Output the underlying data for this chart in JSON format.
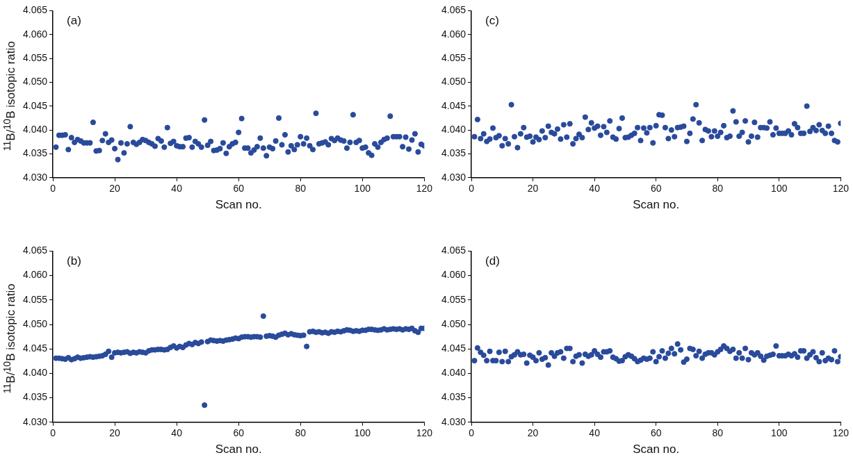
{
  "chart_data": [
    {
      "type": "scatter",
      "title": "(a)",
      "xlabel": "Scan no.",
      "ylabel": "$^{11}$B/$^{10}$B isotopic ratio",
      "marker": "circle",
      "grid": false,
      "legend": false,
      "xlim": [
        0,
        120
      ],
      "xticks": [
        0,
        20,
        40,
        60,
        80,
        100,
        120
      ],
      "ylim": [
        4.03,
        4.065
      ],
      "yticks": [
        {
          "value": 4.03,
          "label": "4.030"
        },
        {
          "value": 4.035,
          "label": "4.035"
        },
        {
          "value": 4.04,
          "label": "4.040"
        },
        {
          "value": 4.045,
          "label": "4.045"
        },
        {
          "value": 4.05,
          "label": "4.050"
        },
        {
          "value": 4.055,
          "label": "4.055"
        },
        {
          "value": 4.06,
          "label": "4.060"
        },
        {
          "value": 4.065,
          "label": "4.065"
        }
      ],
      "series": [
        {
          "color": "#2a4b9b",
          "x": [
            1,
            2,
            3,
            4,
            5,
            6,
            7,
            8,
            9,
            10,
            11,
            12,
            13,
            14,
            15,
            16,
            17,
            18,
            19,
            20,
            21,
            22,
            23,
            24,
            25,
            26,
            27,
            28,
            29,
            30,
            31,
            32,
            33,
            34,
            35,
            36,
            37,
            38,
            39,
            40,
            41,
            42,
            43,
            44,
            45,
            46,
            47,
            48,
            49,
            50,
            51,
            52,
            53,
            54,
            55,
            56,
            57,
            58,
            59,
            60,
            61,
            62,
            63,
            64,
            65,
            66,
            67,
            68,
            69,
            70,
            71,
            72,
            73,
            74,
            75,
            76,
            77,
            78,
            79,
            80,
            81,
            82,
            83,
            84,
            85,
            86,
            87,
            88,
            89,
            90,
            91,
            92,
            93,
            94,
            95,
            96,
            97,
            98,
            99,
            100,
            101,
            102,
            103,
            104,
            105,
            106,
            107,
            108,
            109,
            110,
            111,
            112,
            113,
            114,
            115,
            116,
            117,
            118,
            119,
            120
          ],
          "values": [
            4.0364,
            4.0389,
            4.0389,
            4.039,
            4.0359,
            4.0384,
            4.0374,
            4.038,
            4.0377,
            4.0373,
            4.0373,
            4.0373,
            4.0416,
            4.0356,
            4.0357,
            4.0378,
            4.0392,
            4.0374,
            4.0379,
            4.0361,
            4.0338,
            4.0373,
            4.0352,
            4.0371,
            4.0407,
            4.0374,
            4.037,
            4.0374,
            4.038,
            4.0378,
            4.0374,
            4.0371,
            4.0366,
            4.0382,
            4.0377,
            4.0364,
            4.0405,
            4.0372,
            4.0376,
            4.0367,
            4.0365,
            4.0365,
            4.0383,
            4.0384,
            4.0364,
            4.0376,
            4.0371,
            4.0364,
            4.0421,
            4.0368,
            4.0376,
            4.0357,
            4.0358,
            4.0361,
            4.0373,
            4.0351,
            4.0365,
            4.0371,
            4.0374,
            4.0395,
            4.0424,
            4.0362,
            4.0362,
            4.0352,
            4.0358,
            4.0365,
            4.0383,
            4.0362,
            4.0346,
            4.0364,
            4.0361,
            4.0377,
            4.0425,
            4.0369,
            4.039,
            4.0354,
            4.0367,
            4.0359,
            4.0369,
            4.0386,
            4.0371,
            4.0383,
            4.0367,
            4.0359,
            4.0435,
            4.0371,
            4.0373,
            4.0375,
            4.0369,
            4.0382,
            4.0378,
            4.0383,
            4.0379,
            4.0377,
            4.0362,
            4.0374,
            4.0432,
            4.0374,
            4.0378,
            4.0362,
            4.0364,
            4.0352,
            4.0347,
            4.0371,
            4.0364,
            4.0374,
            4.038,
            4.0383,
            4.0429,
            4.0386,
            4.0386,
            4.0386,
            4.0365,
            4.0385,
            4.036,
            4.0379,
            4.0392,
            4.0354,
            4.037,
            4.0367
          ]
        }
      ]
    },
    {
      "type": "scatter",
      "title": "(c)",
      "xlabel": "Scan no.",
      "marker": "circle",
      "grid": false,
      "legend": false,
      "xlim": [
        0,
        120
      ],
      "xticks": [
        0,
        20,
        40,
        60,
        80,
        100,
        120
      ],
      "ylim": [
        4.03,
        4.065
      ],
      "yticks": [
        {
          "value": 4.03,
          "label": "4.030"
        },
        {
          "value": 4.035,
          "label": "4.035"
        },
        {
          "value": 4.04,
          "label": "4.040"
        },
        {
          "value": 4.045,
          "label": "4.045"
        },
        {
          "value": 4.05,
          "label": "4.050"
        },
        {
          "value": 4.055,
          "label": "4.055"
        },
        {
          "value": 4.06,
          "label": "4.060"
        },
        {
          "value": 4.065,
          "label": "4.065"
        }
      ],
      "series": [
        {
          "color": "#2a4b9b",
          "x": [
            1,
            2,
            3,
            4,
            5,
            6,
            7,
            8,
            9,
            10,
            11,
            12,
            13,
            14,
            15,
            16,
            17,
            18,
            19,
            20,
            21,
            22,
            23,
            24,
            25,
            26,
            27,
            28,
            29,
            30,
            31,
            32,
            33,
            34,
            35,
            36,
            37,
            38,
            39,
            40,
            41,
            42,
            43,
            44,
            45,
            46,
            47,
            48,
            49,
            50,
            51,
            52,
            53,
            54,
            55,
            56,
            57,
            58,
            59,
            60,
            61,
            62,
            63,
            64,
            65,
            66,
            67,
            68,
            69,
            70,
            71,
            72,
            73,
            74,
            75,
            76,
            77,
            78,
            79,
            80,
            81,
            82,
            83,
            84,
            85,
            86,
            87,
            88,
            89,
            90,
            91,
            92,
            93,
            94,
            95,
            96,
            97,
            98,
            99,
            100,
            101,
            102,
            103,
            104,
            105,
            106,
            107,
            108,
            109,
            110,
            111,
            112,
            113,
            114,
            115,
            116,
            117,
            118,
            119,
            120
          ],
          "values": [
            4.0386,
            4.0422,
            4.0382,
            4.0392,
            4.0376,
            4.0381,
            4.0404,
            4.0384,
            4.0388,
            4.0367,
            4.0382,
            4.0371,
            4.0453,
            4.0386,
            4.0363,
            4.0392,
            4.0405,
            4.0385,
            4.0387,
            4.0375,
            4.0385,
            4.038,
            4.0398,
            4.0384,
            4.0408,
            4.0395,
            4.0392,
            4.0402,
            4.0381,
            4.0411,
            4.0385,
            4.0413,
            4.0371,
            4.0382,
            4.0391,
            4.0384,
            4.0427,
            4.0401,
            4.0415,
            4.0404,
            4.0408,
            4.0389,
            4.0407,
            4.0395,
            4.0419,
            4.0385,
            4.0381,
            4.0403,
            4.0425,
            4.0384,
            4.0385,
            4.0389,
            4.0393,
            4.0405,
            4.0378,
            4.0404,
            4.0394,
            4.0405,
            4.0373,
            4.0409,
            4.0432,
            4.0431,
            4.0405,
            4.0382,
            4.04,
            4.0386,
            4.0405,
            4.0406,
            4.0408,
            4.0376,
            4.0393,
            4.0423,
            4.0453,
            4.0415,
            4.0378,
            4.0401,
            4.0398,
            4.0386,
            4.0398,
            4.0387,
            4.0395,
            4.0409,
            4.0384,
            4.0387,
            4.044,
            4.0417,
            4.0387,
            4.0395,
            4.0419,
            4.0375,
            4.0387,
            4.0416,
            4.0385,
            4.0405,
            4.0405,
            4.0404,
            4.0417,
            4.039,
            4.0404,
            4.0393,
            4.0393,
            4.0393,
            4.0398,
            4.039,
            4.0413,
            4.0405,
            4.0393,
            4.0393,
            4.045,
            4.0397,
            4.0405,
            4.0399,
            4.0411,
            4.0399,
            4.0393,
            4.0408,
            4.0393,
            4.0378,
            4.0375,
            4.0414
          ]
        }
      ]
    },
    {
      "type": "scatter",
      "title": "(b)",
      "xlabel": "Scan no.",
      "ylabel": "$^{11}$B/$^{10}$B isotopic ratio",
      "marker": "circle",
      "grid": false,
      "legend": false,
      "xlim": [
        0,
        120
      ],
      "xticks": [
        0,
        20,
        40,
        60,
        80,
        100,
        120
      ],
      "ylim": [
        4.03,
        4.065
      ],
      "yticks": [
        {
          "value": 4.03,
          "label": "4.030"
        },
        {
          "value": 4.035,
          "label": "4.035"
        },
        {
          "value": 4.04,
          "label": "4.040"
        },
        {
          "value": 4.045,
          "label": "4.045"
        },
        {
          "value": 4.05,
          "label": "4.050"
        },
        {
          "value": 4.055,
          "label": "4.055"
        },
        {
          "value": 4.06,
          "label": "4.060"
        },
        {
          "value": 4.065,
          "label": "4.065"
        }
      ],
      "series": [
        {
          "color": "#2a4b9b",
          "x": [
            1,
            2,
            3,
            4,
            5,
            6,
            7,
            8,
            9,
            10,
            11,
            12,
            13,
            14,
            15,
            16,
            17,
            18,
            19,
            20,
            21,
            22,
            23,
            24,
            25,
            26,
            27,
            28,
            29,
            30,
            31,
            32,
            33,
            34,
            35,
            36,
            37,
            38,
            39,
            40,
            41,
            42,
            43,
            44,
            45,
            46,
            47,
            48,
            49,
            50,
            51,
            52,
            53,
            54,
            55,
            56,
            57,
            58,
            59,
            60,
            61,
            62,
            63,
            64,
            65,
            66,
            67,
            68,
            69,
            70,
            71,
            72,
            73,
            74,
            75,
            76,
            77,
            78,
            79,
            80,
            81,
            82,
            83,
            84,
            85,
            86,
            87,
            88,
            89,
            90,
            91,
            92,
            93,
            94,
            95,
            96,
            97,
            98,
            99,
            100,
            101,
            102,
            103,
            104,
            105,
            106,
            107,
            108,
            109,
            110,
            111,
            112,
            113,
            114,
            115,
            116,
            117,
            118,
            119,
            120
          ],
          "values": [
            4.0431,
            4.0431,
            4.043,
            4.0429,
            4.0432,
            4.0428,
            4.043,
            4.0433,
            4.0431,
            4.0432,
            4.0433,
            4.0434,
            4.0433,
            4.0434,
            4.0435,
            4.0436,
            4.0439,
            4.0445,
            4.0433,
            4.0442,
            4.0443,
            4.0442,
            4.0443,
            4.0444,
            4.0441,
            4.0443,
            4.0442,
            4.0444,
            4.0443,
            4.0442,
            4.0446,
            4.0448,
            4.0448,
            4.0449,
            4.0449,
            4.0448,
            4.0449,
            4.0453,
            4.0456,
            4.0452,
            4.0455,
            4.0453,
            4.0458,
            4.0461,
            4.0459,
            4.0463,
            4.0461,
            4.0464,
            4.0335,
            4.0465,
            4.0468,
            4.0467,
            4.0466,
            4.0467,
            4.0466,
            4.0468,
            4.0469,
            4.047,
            4.0472,
            4.0471,
            4.0474,
            4.0475,
            4.0475,
            4.0474,
            4.0475,
            4.0475,
            4.0474,
            4.0517,
            4.0476,
            4.0477,
            4.0476,
            4.0474,
            4.0478,
            4.048,
            4.0482,
            4.0479,
            4.0481,
            4.0479,
            4.0478,
            4.0477,
            4.0478,
            4.0455,
            4.0485,
            4.0486,
            4.0484,
            4.0485,
            4.0483,
            4.0484,
            4.0482,
            4.0485,
            4.0484,
            4.0486,
            4.0485,
            4.0487,
            4.0489,
            4.0488,
            4.0486,
            4.0487,
            4.0486,
            4.0488,
            4.0488,
            4.049,
            4.049,
            4.0489,
            4.0488,
            4.0489,
            4.0491,
            4.0489,
            4.049,
            4.0491,
            4.049,
            4.0491,
            4.0489,
            4.0491,
            4.049,
            4.0492,
            4.0487,
            4.0484,
            4.0492,
            4.0492
          ]
        }
      ]
    },
    {
      "type": "scatter",
      "title": "(d)",
      "xlabel": "Scan no.",
      "marker": "circle",
      "grid": false,
      "legend": false,
      "xlim": [
        0,
        120
      ],
      "xticks": [
        0,
        20,
        40,
        60,
        80,
        100,
        120
      ],
      "ylim": [
        4.03,
        4.065
      ],
      "yticks": [
        {
          "value": 4.03,
          "label": "4.030"
        },
        {
          "value": 4.035,
          "label": "4.035"
        },
        {
          "value": 4.04,
          "label": "4.040"
        },
        {
          "value": 4.045,
          "label": "4.045"
        },
        {
          "value": 4.05,
          "label": "4.050"
        },
        {
          "value": 4.055,
          "label": "4.055"
        },
        {
          "value": 4.06,
          "label": "4.060"
        },
        {
          "value": 4.065,
          "label": "4.065"
        }
      ],
      "series": [
        {
          "color": "#2a4b9b",
          "x": [
            1,
            2,
            3,
            4,
            5,
            6,
            7,
            8,
            9,
            10,
            11,
            12,
            13,
            14,
            15,
            16,
            17,
            18,
            19,
            20,
            21,
            22,
            23,
            24,
            25,
            26,
            27,
            28,
            29,
            30,
            31,
            32,
            33,
            34,
            35,
            36,
            37,
            38,
            39,
            40,
            41,
            42,
            43,
            44,
            45,
            46,
            47,
            48,
            49,
            50,
            51,
            52,
            53,
            54,
            55,
            56,
            57,
            58,
            59,
            60,
            61,
            62,
            63,
            64,
            65,
            66,
            67,
            68,
            69,
            70,
            71,
            72,
            73,
            74,
            75,
            76,
            77,
            78,
            79,
            80,
            81,
            82,
            83,
            84,
            85,
            86,
            87,
            88,
            89,
            90,
            91,
            92,
            93,
            94,
            95,
            96,
            97,
            98,
            99,
            100,
            101,
            102,
            103,
            104,
            105,
            106,
            107,
            108,
            109,
            110,
            111,
            112,
            113,
            114,
            115,
            116,
            117,
            118,
            119,
            120
          ],
          "values": [
            4.0426,
            4.0452,
            4.0443,
            4.0437,
            4.0426,
            4.0445,
            4.0426,
            4.0426,
            4.0443,
            4.0424,
            4.0445,
            4.0424,
            4.0434,
            4.0438,
            4.0444,
            4.0438,
            4.0439,
            4.0421,
            4.0437,
            4.0433,
            4.0426,
            4.0442,
            4.0429,
            4.0432,
            4.0417,
            4.0442,
            4.0435,
            4.0442,
            4.0444,
            4.0431,
            4.0451,
            4.0451,
            4.0424,
            4.0435,
            4.0438,
            4.0421,
            4.0439,
            4.0435,
            4.0438,
            4.0446,
            4.0439,
            4.0433,
            4.0444,
            4.0444,
            4.0446,
            4.0433,
            4.043,
            4.0425,
            4.0426,
            4.0434,
            4.0438,
            4.0435,
            4.043,
            4.0424,
            4.0427,
            4.0431,
            4.0429,
            4.0431,
            4.0444,
            4.0424,
            4.0434,
            4.0446,
            4.0431,
            4.0441,
            4.0451,
            4.044,
            4.046,
            4.0448,
            4.0423,
            4.0429,
            4.0451,
            4.0449,
            4.0436,
            4.0445,
            4.0431,
            4.0439,
            4.0442,
            4.0442,
            4.0438,
            4.0444,
            4.0449,
            4.0456,
            4.0451,
            4.0445,
            4.0449,
            4.0431,
            4.0442,
            4.0431,
            4.0451,
            4.0428,
            4.0442,
            4.0438,
            4.0442,
            4.0435,
            4.0427,
            4.0435,
            4.0437,
            4.0439,
            4.0456,
            4.0436,
            4.0436,
            4.0436,
            4.0439,
            4.0436,
            4.044,
            4.0433,
            4.0446,
            4.0446,
            4.0431,
            4.0438,
            4.0444,
            4.0432,
            4.0424,
            4.0442,
            4.0426,
            4.0431,
            4.0428,
            4.0446,
            4.0424,
            4.0434
          ]
        }
      ]
    }
  ]
}
